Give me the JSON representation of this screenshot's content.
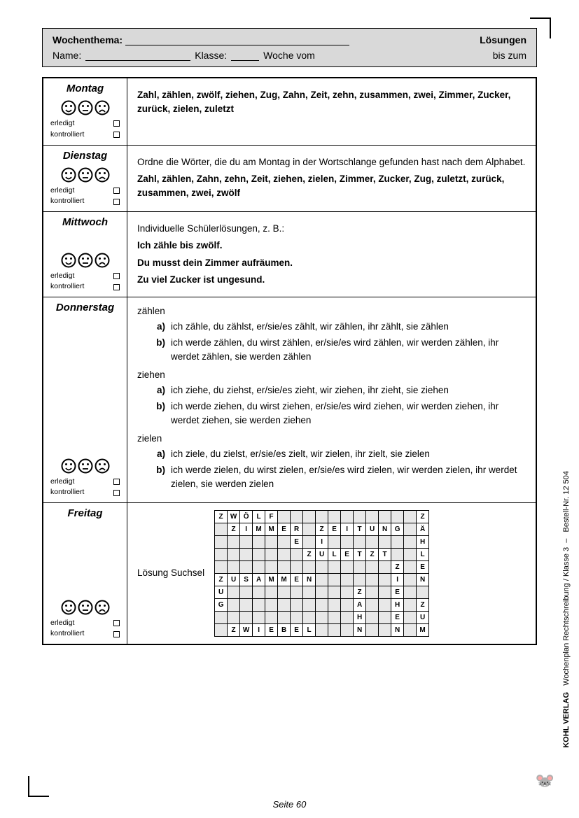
{
  "header": {
    "topic_label": "Wochenthema:",
    "name_label": "Name:",
    "class_label": "Klasse:",
    "week_from": "Woche vom",
    "solutions": "Lösungen",
    "until": "bis zum"
  },
  "days": {
    "mon": {
      "name": "Montag",
      "text": "Zahl, zählen, zwölf, ziehen, Zug, Zahn, Zeit, zehn, zusammen, zwei, Zimmer, Zucker, zurück, zielen, zuletzt"
    },
    "tue": {
      "name": "Dienstag",
      "intro": "Ordne die Wörter, die du am Montag in der Wortschlange gefunden hast nach dem Alphabet.",
      "text": "Zahl, zählen, Zahn, zehn, Zeit, ziehen, zielen, Zimmer, Zucker, Zug, zuletzt, zurück, zusammen, zwei, zwölf"
    },
    "wed": {
      "name": "Mittwoch",
      "intro": "Individuelle Schülerlösungen, z. B.:",
      "l1": "Ich zähle bis zwölf.",
      "l2": "Du musst dein Zimmer aufräumen.",
      "l3": "Zu viel Zucker ist ungesund."
    },
    "thu": {
      "name": "Donnerstag",
      "verbs": [
        {
          "title": "zählen",
          "a": "ich zähle, du zählst, er/sie/es zählt, wir zählen, ihr zählt, sie zählen",
          "b": "ich werde zählen, du wirst zählen, er/sie/es wird zählen, wir werden zählen, ihr werdet zählen, sie werden zählen"
        },
        {
          "title": "ziehen",
          "a": "ich ziehe, du ziehst, er/sie/es zieht, wir ziehen, ihr zieht, sie ziehen",
          "b": "ich werde ziehen, du wirst ziehen, er/sie/es wird ziehen, wir werden ziehen, ihr werdet ziehen, sie werden ziehen"
        },
        {
          "title": "zielen",
          "a": "ich ziele, du zielst, er/sie/es zielt, wir zielen, ihr zielt, sie zielen",
          "b": "ich werde zielen, du wirst zielen, er/sie/es wird zielen, wir werden zielen, ihr werdet zielen, sie werden zielen"
        }
      ]
    },
    "fri": {
      "name": "Freitag",
      "label": "Lösung Suchsel",
      "grid": [
        [
          "Z",
          "W",
          "Ö",
          "L",
          "F",
          "",
          "",
          "",
          "",
          "",
          "",
          "",
          "",
          "",
          "",
          "",
          "Z"
        ],
        [
          "",
          "Z",
          "I",
          "M",
          "M",
          "E",
          "R",
          "",
          "Z",
          "E",
          "I",
          "T",
          "U",
          "N",
          "G",
          "",
          "Ä"
        ],
        [
          "",
          "",
          "",
          "",
          "",
          "",
          "E",
          "",
          "I",
          "",
          "",
          "",
          "",
          "",
          "",
          "",
          "H"
        ],
        [
          "",
          "",
          "",
          "",
          "",
          "",
          "",
          "Z",
          "U",
          "L",
          "E",
          "T",
          "Z",
          "T",
          "",
          "",
          "L"
        ],
        [
          "",
          "",
          "",
          "",
          "",
          "",
          "",
          "",
          "",
          "",
          "",
          "",
          "",
          "",
          "Z",
          "",
          "E"
        ],
        [
          "Z",
          "U",
          "S",
          "A",
          "M",
          "M",
          "E",
          "N",
          "",
          "",
          "",
          "",
          "",
          "",
          "I",
          "",
          "N"
        ],
        [
          "U",
          "",
          "",
          "",
          "",
          "",
          "",
          "",
          "",
          "",
          "",
          "Z",
          "",
          "",
          "E",
          "",
          ""
        ],
        [
          "G",
          "",
          "",
          "",
          "",
          "",
          "",
          "",
          "",
          "",
          "",
          "A",
          "",
          "",
          "H",
          "",
          "Z"
        ],
        [
          "",
          "",
          "",
          "",
          "",
          "",
          "",
          "",
          "",
          "",
          "",
          "H",
          "",
          "",
          "E",
          "",
          "U"
        ],
        [
          "",
          "Z",
          "W",
          "I",
          "E",
          "B",
          "E",
          "L",
          "",
          "",
          "",
          "N",
          "",
          "",
          "N",
          "",
          "M"
        ]
      ]
    }
  },
  "labels": {
    "done": "erledigt",
    "checked": "kontrolliert",
    "a": "a)",
    "b": "b)"
  },
  "footer": "Seite 60",
  "side": {
    "title": "Wochenplan Rechtschreibung  /  Klasse 3",
    "order": "Bestell-Nr. 12 504",
    "verlag": "KOHL VERLAG"
  }
}
